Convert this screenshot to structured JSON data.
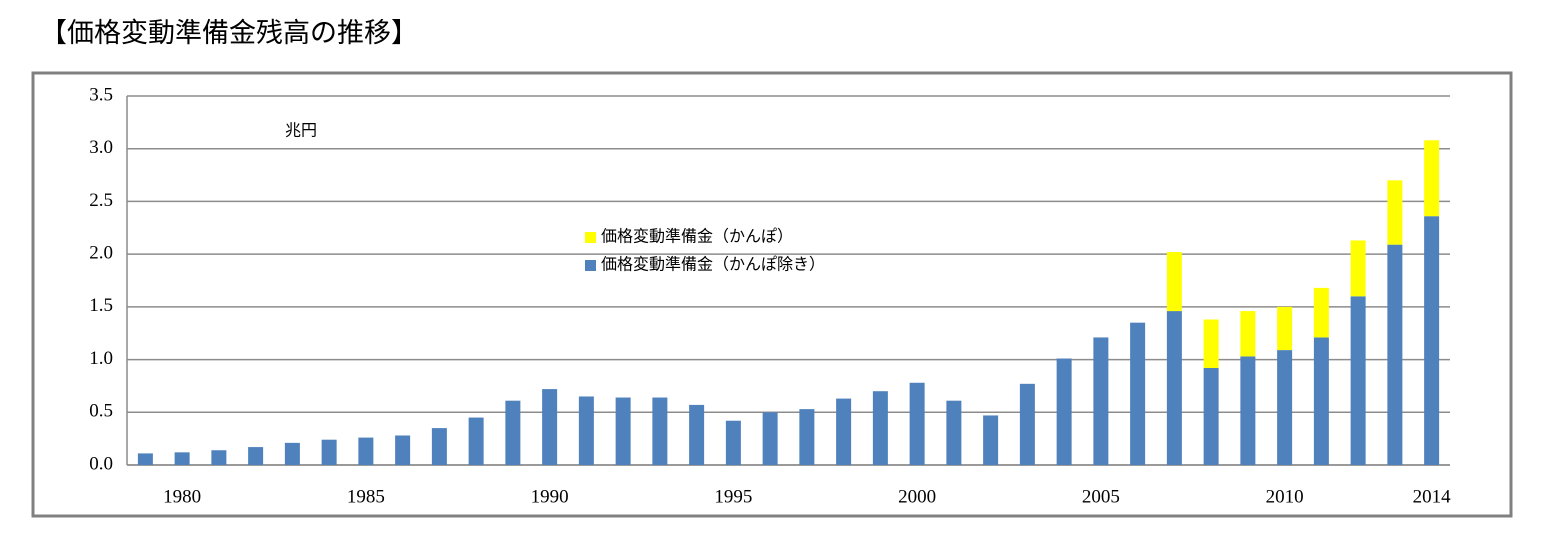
{
  "chart_data": {
    "type": "stacked_bar",
    "title": "【価格変動準備金残高の推移】",
    "unit_label": "兆円",
    "categories": [
      null,
      "1980",
      null,
      null,
      null,
      null,
      "1985",
      null,
      null,
      null,
      null,
      "1990",
      null,
      null,
      null,
      null,
      "1995",
      null,
      null,
      null,
      null,
      "2000",
      null,
      null,
      null,
      null,
      "2005",
      null,
      null,
      null,
      null,
      "2010",
      null,
      null,
      null,
      "2014"
    ],
    "series": [
      {
        "name": "価格変動準備金（かんぽ除き）",
        "color": "#4f81bd",
        "values": [
          0.11,
          0.12,
          0.14,
          0.17,
          0.21,
          0.24,
          0.26,
          0.28,
          0.35,
          0.45,
          0.61,
          0.72,
          0.65,
          0.64,
          0.64,
          0.57,
          0.42,
          0.5,
          0.53,
          0.63,
          0.7,
          0.78,
          0.61,
          0.47,
          0.77,
          1.01,
          1.21,
          1.35,
          1.46,
          0.92,
          1.03,
          1.09,
          1.21,
          1.6,
          2.09,
          2.36
        ]
      },
      {
        "name": "価格変動準備金（かんぽ）",
        "color": "#ffff00",
        "values": [
          null,
          null,
          null,
          null,
          null,
          null,
          null,
          null,
          null,
          null,
          null,
          null,
          null,
          null,
          null,
          null,
          null,
          null,
          null,
          null,
          null,
          null,
          null,
          null,
          null,
          null,
          null,
          null,
          0.56,
          0.46,
          0.43,
          0.41,
          0.47,
          0.53,
          0.61,
          0.72
        ]
      }
    ],
    "ylim": [
      0,
      3.5
    ],
    "yticks": [
      {
        "value": 0,
        "label": "0.0"
      },
      0.5,
      {
        "value": 1,
        "label": "1.0"
      },
      1.5,
      {
        "value": 2,
        "label": "2.0"
      },
      2.5,
      {
        "value": 3,
        "label": "3.0"
      },
      3.5
    ],
    "grid": true
  }
}
